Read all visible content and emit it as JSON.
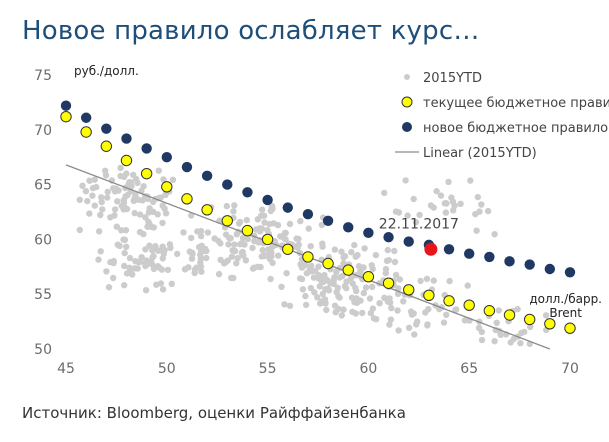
{
  "title": "Новое правило ослабляет курс…",
  "source": "Источник: Bloomberg, оценки Райффайзенбанка",
  "colors": {
    "title": "#1f4e79",
    "scatter": "#cccccc",
    "current_rule": "#ffff00",
    "current_rule_stroke": "#333333",
    "new_rule": "#1f3864",
    "highlight": "#e8161b",
    "trend": "#8c8c8c",
    "axis_text": "#6b6b6b"
  },
  "chart_data": {
    "type": "scatter",
    "ylabel": "руб./долл.",
    "xlabel": "долл./барр. Brent",
    "xlim": [
      45,
      70
    ],
    "ylim": [
      50,
      75
    ],
    "x_ticks": [
      45,
      50,
      55,
      60,
      65,
      70
    ],
    "y_ticks": [
      50,
      55,
      60,
      65,
      70,
      75
    ],
    "legend_position": "top-right",
    "series": [
      {
        "name": "2015YTD",
        "kind": "cloud",
        "clusters": [
          {
            "x": [
              45,
              51
            ],
            "y": [
              60,
              67
            ],
            "n": 90
          },
          {
            "x": [
              46,
              53
            ],
            "y": [
              55,
              61
            ],
            "n": 80
          },
          {
            "x": [
              51,
              58
            ],
            "y": [
              56,
              64
            ],
            "n": 130
          },
          {
            "x": [
              55,
              62
            ],
            "y": [
              53,
              60
            ],
            "n": 110
          },
          {
            "x": [
              58,
              66
            ],
            "y": [
              51,
              57
            ],
            "n": 60
          },
          {
            "x": [
              60,
              67
            ],
            "y": [
              60,
              67
            ],
            "n": 30
          },
          {
            "x": [
              64,
              70
            ],
            "y": [
              50,
              54
            ],
            "n": 25
          }
        ]
      },
      {
        "name": "текущее бюджетное правило",
        "x": [
          45,
          46,
          47,
          48,
          49,
          50,
          51,
          52,
          53,
          54,
          55,
          56,
          57,
          58,
          59,
          60,
          61,
          62,
          63,
          64,
          65,
          66,
          67,
          68,
          69,
          70
        ],
        "y": [
          71.2,
          69.8,
          68.5,
          67.2,
          66.0,
          64.8,
          63.7,
          62.7,
          61.7,
          60.8,
          60.0,
          59.1,
          58.4,
          57.8,
          57.2,
          56.6,
          56.0,
          55.4,
          54.9,
          54.4,
          54.0,
          53.5,
          53.1,
          52.7,
          52.3,
          51.9
        ]
      },
      {
        "name": "новое бюджетное правило",
        "x": [
          45,
          46,
          47,
          48,
          49,
          50,
          51,
          52,
          53,
          54,
          55,
          56,
          57,
          58,
          59,
          60,
          61,
          62,
          63,
          64,
          65,
          66,
          67,
          68,
          69,
          70
        ],
        "y": [
          72.2,
          71.1,
          70.1,
          69.2,
          68.3,
          67.5,
          66.6,
          65.8,
          65.0,
          64.3,
          63.6,
          62.9,
          62.3,
          61.7,
          61.1,
          60.6,
          60.2,
          59.8,
          59.5,
          59.1,
          58.7,
          58.4,
          58.0,
          57.7,
          57.3,
          57.0
        ]
      },
      {
        "name": "Linear (2015YTD)",
        "kind": "trendline",
        "x": [
          45,
          69
        ],
        "y": [
          66.8,
          50
        ]
      }
    ],
    "annotations": [
      {
        "label": "22.11.2017",
        "x": 63.1,
        "y": 59.1
      }
    ]
  }
}
